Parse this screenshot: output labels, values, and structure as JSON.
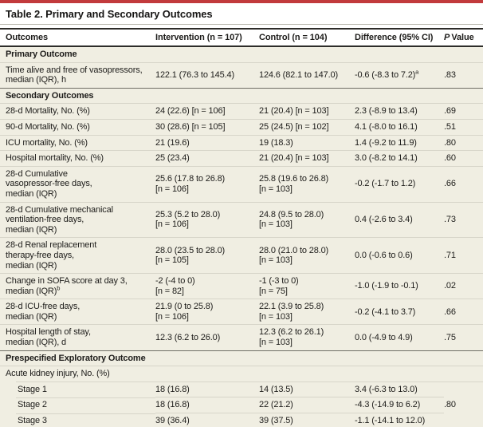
{
  "colors": {
    "accent_red": "#c23a3c",
    "body_beige": "#f0eee2",
    "heavy_rule": "#2d2c29",
    "light_rule": "#d7d5c9",
    "section_rule": "#6f6e65"
  },
  "table": {
    "title": "Table 2. Primary and Secondary Outcomes",
    "headers": {
      "outcomes": "Outcomes",
      "intervention": "Intervention (n = 107)",
      "control": "Control (n = 104)",
      "difference": "Difference (95% CI)",
      "p_italic": "P",
      "p_rest": "Value"
    },
    "rows": [
      {
        "type": "section",
        "label": "Primary Outcome"
      },
      {
        "type": "data",
        "label": "Time alive and free of vasopressors,\nmedian (IQR), h",
        "intervention": "122.1 (76.3 to 145.4)",
        "control": "124.6 (82.1 to 147.0)",
        "difference": "-0.6 (-8.3 to 7.2)",
        "difference_sup": "a",
        "p": ".83"
      },
      {
        "type": "section",
        "label": "Secondary Outcomes"
      },
      {
        "type": "data",
        "label": "28-d Mortality, No. (%)",
        "intervention": "24 (22.6) [n = 106]",
        "control": "21 (20.4) [n = 103]",
        "difference": "2.3 (-8.9 to 13.4)",
        "p": ".69"
      },
      {
        "type": "data",
        "label": "90-d Mortality, No. (%)",
        "intervention": "30 (28.6) [n = 105]",
        "control": "25 (24.5) [n = 102]",
        "difference": "4.1 (-8.0 to 16.1)",
        "p": ".51"
      },
      {
        "type": "data",
        "label": "ICU mortality, No. (%)",
        "intervention": "21 (19.6)",
        "control": "19 (18.3)",
        "difference": "1.4 (-9.2 to 11.9)",
        "p": ".80"
      },
      {
        "type": "data",
        "label": "Hospital mortality, No. (%)",
        "intervention": "25 (23.4)",
        "control": "21 (20.4) [n = 103]",
        "difference": "3.0 (-8.2 to 14.1)",
        "p": ".60"
      },
      {
        "type": "data",
        "label": "28-d Cumulative\nvasopressor-free days,\nmedian (IQR)",
        "intervention": "25.6 (17.8 to 26.8)\n[n = 106]",
        "control": "25.8 (19.6 to 26.8)\n[n = 103]",
        "difference": "-0.2 (-1.7 to 1.2)",
        "p": ".66"
      },
      {
        "type": "data",
        "label": "28-d Cumulative mechanical\nventilation-free days,\nmedian (IQR)",
        "intervention": "25.3 (5.2 to 28.0)\n[n = 106]",
        "control": "24.8 (9.5 to 28.0)\n[n = 103]",
        "difference": "0.4 (-2.6 to 3.4)",
        "p": ".73"
      },
      {
        "type": "data",
        "label": "28-d Renal replacement\ntherapy-free days,\nmedian (IQR)",
        "intervention": "28.0 (23.5 to 28.0)\n[n = 105]",
        "control": "28.0 (21.0 to 28.0)\n[n = 103]",
        "difference": "0.0 (-0.6 to 0.6)",
        "p": ".71"
      },
      {
        "type": "data",
        "label": "Change in SOFA score at day 3,\nmedian (IQR)",
        "label_sup": "b",
        "intervention": "-2 (-4 to 0)\n[n = 82]",
        "control": "-1 (-3 to 0)\n[n = 75]",
        "difference": "-1.0 (-1.9 to -0.1)",
        "p": ".02"
      },
      {
        "type": "data",
        "label": "28-d ICU-free days,\nmedian (IQR)",
        "intervention": "21.9 (0 to 25.8)\n[n = 106]",
        "control": "22.1 (3.9 to 25.8)\n[n = 103]",
        "difference": "-0.2 (-4.1 to 3.7)",
        "p": ".66"
      },
      {
        "type": "data",
        "label": "Hospital length of stay,\nmedian (IQR), d",
        "intervention": "12.3 (6.2 to 26.0)",
        "control": "12.3 (6.2 to 26.1)\n[n = 103]",
        "difference": "0.0 (-4.9 to 4.9)",
        "p": ".75"
      },
      {
        "type": "section",
        "label": "Prespecified Exploratory Outcome"
      },
      {
        "type": "group",
        "label": "Acute kidney injury, No. (%)"
      },
      {
        "type": "data",
        "indent": true,
        "label": "Stage 1",
        "intervention": "18 (16.8)",
        "control": "14 (13.5)",
        "difference": "3.4 (-6.3 to 13.0)",
        "p": ".80",
        "p_rowspan": 3
      },
      {
        "type": "data",
        "indent": true,
        "label": "Stage 2",
        "intervention": "18 (16.8)",
        "control": "22 (21.2)",
        "difference": "-4.3 (-14.9 to 6.2)"
      },
      {
        "type": "data",
        "indent": true,
        "label": "Stage 3",
        "intervention": "39 (36.4)",
        "control": "39 (37.5)",
        "difference": "-1.1 (-14.1 to 12.0)"
      }
    ]
  }
}
